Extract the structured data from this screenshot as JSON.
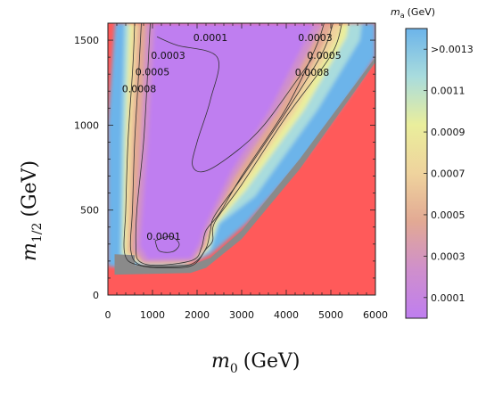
{
  "chart_data": {
    "type": "heatmap",
    "title": "",
    "xlabel": "m_0 (GeV)",
    "ylabel": "m_{1/2} (GeV)",
    "xlabel_main": "m",
    "xlabel_sub": "0",
    "xlabel_unit": "(GeV)",
    "ylabel_main": "m",
    "ylabel_sub": "1/2",
    "ylabel_unit": "(GeV)",
    "xlim": [
      0,
      6000
    ],
    "ylim": [
      0,
      1600
    ],
    "xticks": [
      0,
      1000,
      2000,
      3000,
      4000,
      5000,
      6000
    ],
    "yticks": [
      0,
      500,
      1000,
      1500
    ],
    "xtick_labels": [
      "0",
      "1000",
      "2000",
      "3000",
      "4000",
      "5000",
      "6000"
    ],
    "ytick_labels": [
      "0",
      "500",
      "1000",
      "1500"
    ],
    "grid": false,
    "excluded_color": "#ff5a5a",
    "band_color": "#8a8a8a",
    "colorbar": {
      "title": "m_a (GeV)",
      "title_main": "m",
      "title_sub": "a",
      "title_unit": "(GeV)",
      "range": [
        0.0,
        0.0014
      ],
      "tick_labels": [
        ">0.0013",
        "0.0011",
        "0.0009",
        "0.0007",
        "0.0005",
        "0.0003",
        "0.0001"
      ],
      "tick_values": [
        0.0013,
        0.0011,
        0.0009,
        0.0007,
        0.0005,
        0.0003,
        0.0001
      ],
      "colors": [
        "#bf7ef0",
        "#cf8fcc",
        "#e2a994",
        "#efd39d",
        "#eaee9c",
        "#a9dcdd",
        "#6cb4ea"
      ]
    },
    "contours": [
      {
        "level": "0.0001",
        "points": [
          [
            1100,
            1520
          ],
          [
            1550,
            1470
          ],
          [
            2450,
            1400
          ],
          [
            2300,
            1150
          ],
          [
            2000,
            900
          ],
          [
            1900,
            760
          ],
          [
            2200,
            730
          ],
          [
            2900,
            850
          ],
          [
            3500,
            1000
          ],
          [
            4200,
            1250
          ],
          [
            4600,
            1400
          ]
        ]
      },
      {
        "level": "0.0003",
        "points": [
          [
            950,
            1600
          ],
          [
            900,
            1350
          ],
          [
            800,
            900
          ],
          [
            650,
            500
          ],
          [
            630,
            280
          ],
          [
            700,
            200
          ],
          [
            1100,
            175
          ],
          [
            1900,
            205
          ],
          [
            2100,
            280
          ],
          [
            2200,
            380
          ],
          [
            2500,
            480
          ],
          [
            3000,
            700
          ],
          [
            4000,
            1100
          ],
          [
            4650,
            1450
          ],
          [
            4850,
            1600
          ]
        ]
      },
      {
        "level": "0.0005",
        "points": [
          [
            750,
            1600
          ],
          [
            700,
            1350
          ],
          [
            600,
            900
          ],
          [
            550,
            500
          ],
          [
            510,
            270
          ],
          [
            700,
            180
          ],
          [
            1300,
            165
          ],
          [
            1900,
            185
          ],
          [
            2200,
            275
          ],
          [
            2300,
            380
          ],
          [
            2400,
            470
          ],
          [
            3000,
            690
          ],
          [
            4000,
            1080
          ],
          [
            4800,
            1420
          ],
          [
            5050,
            1600
          ]
        ]
      },
      {
        "level": "0.0008",
        "points": [
          [
            600,
            1600
          ],
          [
            560,
            1350
          ],
          [
            450,
            900
          ],
          [
            400,
            500
          ],
          [
            380,
            240
          ],
          [
            700,
            175
          ],
          [
            1300,
            160
          ],
          [
            1900,
            175
          ],
          [
            2200,
            270
          ],
          [
            2350,
            320
          ],
          [
            2400,
            430
          ],
          [
            3000,
            650
          ],
          [
            4000,
            1050
          ],
          [
            5000,
            1410
          ],
          [
            5250,
            1600
          ]
        ]
      },
      {
        "level": "0.0001",
        "points": [
          [
            1060,
            320
          ],
          [
            1400,
            345
          ],
          [
            1600,
            300
          ],
          [
            1450,
            255
          ],
          [
            1150,
            260
          ],
          [
            1060,
            320
          ]
        ]
      }
    ],
    "annotations": [
      {
        "text": "0.0001",
        "x": 2300,
        "y": 1510
      },
      {
        "text": "0.0003",
        "x": 1350,
        "y": 1405
      },
      {
        "text": "0.0005",
        "x": 1000,
        "y": 1310
      },
      {
        "text": "0.0008",
        "x": 700,
        "y": 1210
      },
      {
        "text": "0.0003",
        "x": 4650,
        "y": 1510
      },
      {
        "text": "0.0005",
        "x": 4850,
        "y": 1405
      },
      {
        "text": "0.0008",
        "x": 4580,
        "y": 1305
      },
      {
        "text": "0.0001",
        "x": 1250,
        "y": 340
      }
    ]
  }
}
